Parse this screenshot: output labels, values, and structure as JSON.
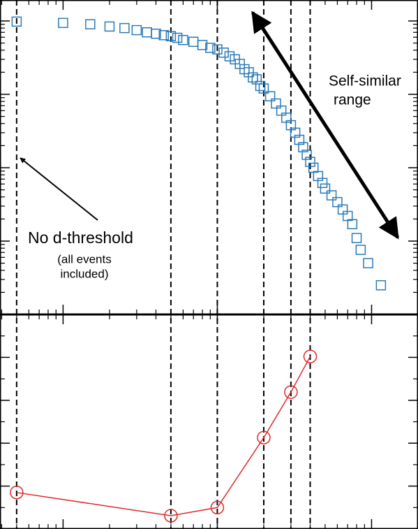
{
  "chart_data": [
    {
      "type": "scatter",
      "marker": "square",
      "color": "#2a7ab9",
      "xscale": "log",
      "yscale": "log",
      "xlim": [
        0.39,
        200
      ],
      "ylim": [
        0.0001,
        1.93
      ],
      "xticks": [
        1,
        10,
        100
      ],
      "yticks": [
        0.001,
        0.01,
        0.1,
        1
      ],
      "x": [
        0.5,
        1,
        1.5,
        2,
        2.5,
        3,
        3.5,
        4,
        4.5,
        5,
        5.5,
        6,
        7,
        8,
        9,
        10,
        11,
        12,
        13,
        14,
        15,
        16,
        17,
        18,
        19,
        20,
        22,
        24,
        26,
        28,
        30,
        32,
        34,
        36,
        38,
        40,
        42,
        45,
        48,
        50,
        55,
        60,
        65,
        70,
        75,
        80,
        85,
        95,
        115
      ],
      "values": [
        0.98,
        0.94,
        0.9,
        0.84,
        0.8,
        0.75,
        0.7,
        0.67,
        0.64,
        0.62,
        0.59,
        0.55,
        0.52,
        0.47,
        0.43,
        0.41,
        0.37,
        0.33,
        0.3,
        0.26,
        0.22,
        0.2,
        0.17,
        0.16,
        0.13,
        0.12,
        0.094,
        0.075,
        0.06,
        0.048,
        0.038,
        0.03,
        0.024,
        0.019,
        0.015,
        0.012,
        0.01,
        0.0077,
        0.0062,
        0.0052,
        0.0042,
        0.0034,
        0.0027,
        0.0022,
        0.0017,
        0.0011,
        0.00076,
        0.0005,
        0.00025
      ],
      "annotations": [
        "Self-similar",
        "range",
        "No d-threshold",
        "(all events",
        "included)"
      ]
    },
    {
      "type": "line",
      "marker": "circle",
      "color": "#e0282b",
      "xscale": "log",
      "xlim": [
        0.39,
        200
      ],
      "ylim": [
        0,
        5
      ],
      "xticks": [
        1,
        10,
        100
      ],
      "yticks": [
        1,
        2,
        3,
        4
      ],
      "x": [
        0.5,
        5,
        10,
        20,
        30,
        40
      ],
      "values": [
        0.85,
        0.31,
        0.5,
        2.13,
        3.19,
        4.02
      ]
    }
  ]
}
